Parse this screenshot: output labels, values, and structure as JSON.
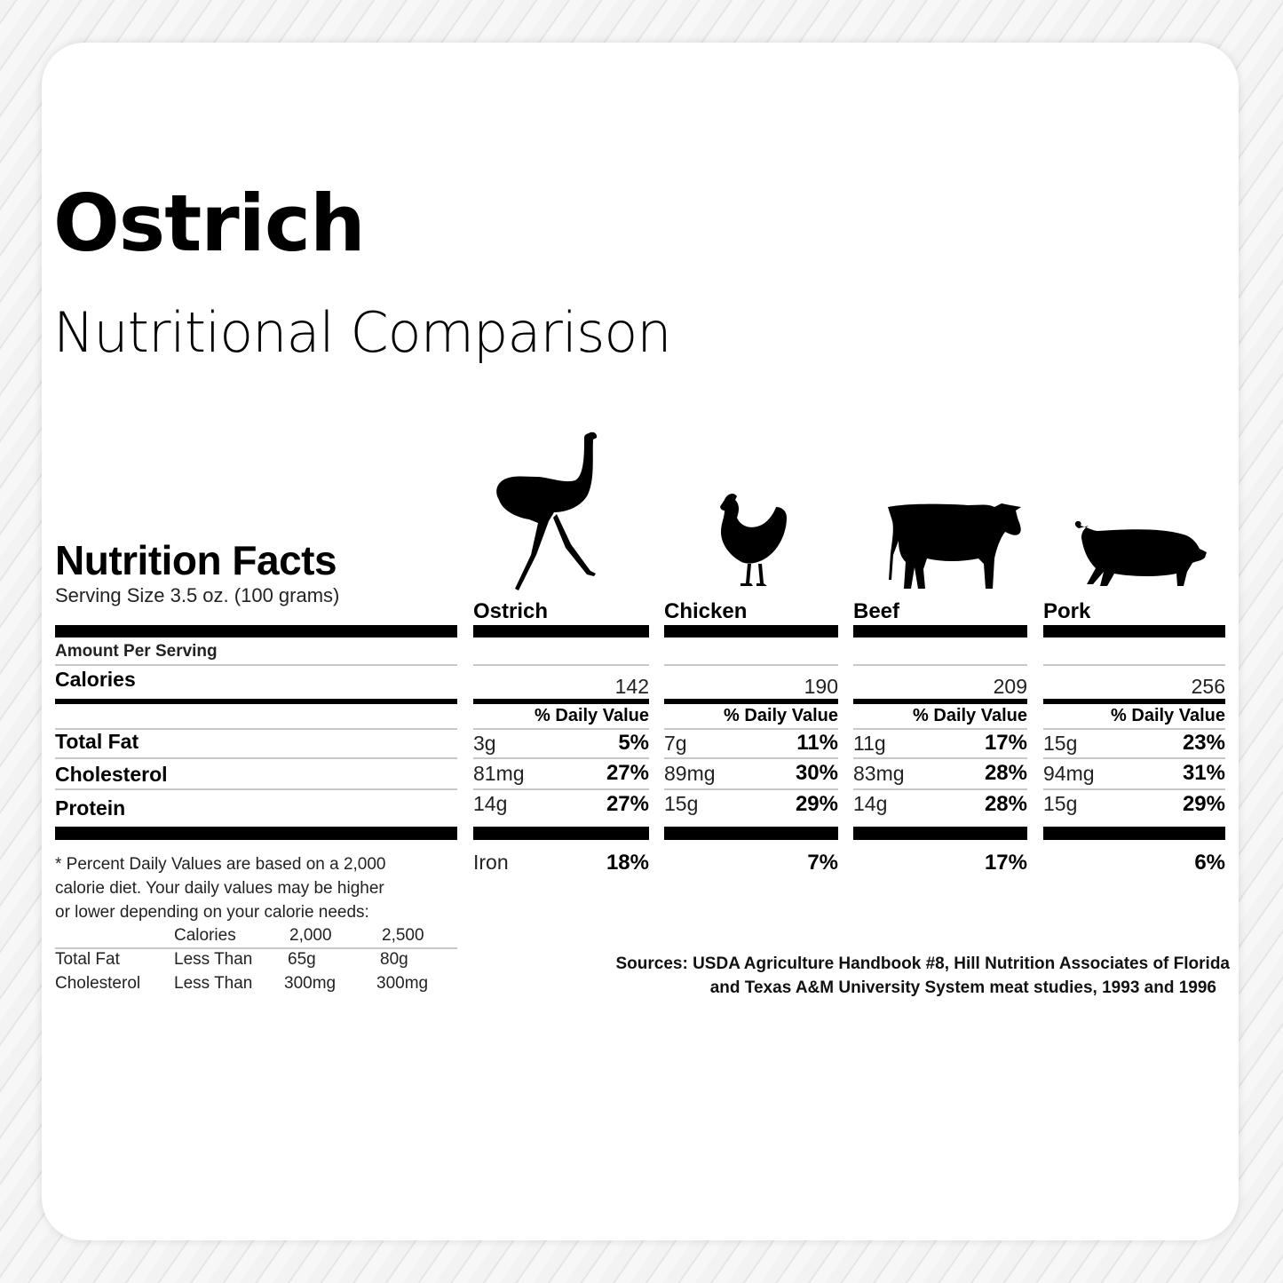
{
  "header": {
    "title": "Ostrich",
    "subtitle": "Nutritional Comparison"
  },
  "label": {
    "heading": "Nutrition Facts",
    "serving_size": "Serving Size 3.5 oz. (100 grams)",
    "amount_per_serving": "Amount Per Serving",
    "rows": [
      "Calories",
      "Total Fat",
      "Cholesterol",
      "Protein"
    ],
    "daily_value_header": "% Daily Value"
  },
  "columns": [
    {
      "name": "Ostrich",
      "icon": "ostrich-icon",
      "calories": "142",
      "total_fat": "3g",
      "total_fat_pct": "5%",
      "cholesterol": "81mg",
      "cholesterol_pct": "27%",
      "protein": "14g",
      "protein_pct": "27%",
      "iron_label": "Iron",
      "iron_pct": "18%"
    },
    {
      "name": "Chicken",
      "icon": "chicken-icon",
      "calories": "190",
      "total_fat": "7g",
      "total_fat_pct": "11%",
      "cholesterol": "89mg",
      "cholesterol_pct": "30%",
      "protein": "15g",
      "protein_pct": "29%",
      "iron_pct": "7%"
    },
    {
      "name": "Beef",
      "icon": "cow-icon",
      "calories": "209",
      "total_fat": "11g",
      "total_fat_pct": "17%",
      "cholesterol": "83mg",
      "cholesterol_pct": "28%",
      "protein": "14g",
      "protein_pct": "28%",
      "iron_pct": "17%"
    },
    {
      "name": "Pork",
      "icon": "pig-icon",
      "calories": "256",
      "total_fat": "15g",
      "total_fat_pct": "23%",
      "cholesterol": "94mg",
      "cholesterol_pct": "31%",
      "protein": "15g",
      "protein_pct": "29%",
      "iron_pct": "6%"
    }
  ],
  "footnote": {
    "lines": [
      "* Percent Daily Values are based on a 2,000",
      "calorie diet. Your daily values may be higher",
      "or lower depending on your calorie needs:"
    ],
    "table": {
      "header": [
        "",
        "Calories",
        "2,000",
        "2,500"
      ],
      "rows": [
        [
          "Total Fat",
          "Less Than",
          "65g",
          "80g"
        ],
        [
          "Cholesterol",
          "Less Than",
          "300mg",
          "300mg"
        ]
      ]
    }
  },
  "sources": [
    "Sources: USDA Agriculture Handbook #8, Hill Nutrition Associates of Florida",
    "and Texas A&M University System meat studies, 1993 and 1996"
  ]
}
